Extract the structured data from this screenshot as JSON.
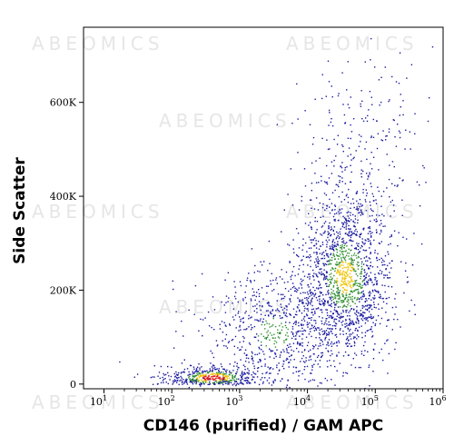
{
  "watermark": "ABEOMICS",
  "chart_data": {
    "type": "scatter",
    "title": "",
    "xlabel": "CD146 (purified) / GAM APC",
    "ylabel": "Side Scatter",
    "x_scale": "log",
    "xlim": [
      5,
      1000000
    ],
    "ylim": [
      -10000,
      760000
    ],
    "grid": false,
    "legend": "none",
    "x_ticks": [
      {
        "base": "10",
        "exp": "1",
        "value": 10
      },
      {
        "base": "10",
        "exp": "2",
        "value": 100
      },
      {
        "base": "10",
        "exp": "3",
        "value": 1000
      },
      {
        "base": "10",
        "exp": "4",
        "value": 10000
      },
      {
        "base": "10",
        "exp": "5",
        "value": 100000
      },
      {
        "base": "10",
        "exp": "6",
        "value": 1000000
      }
    ],
    "y_ticks": [
      {
        "label": "0",
        "value": 0
      },
      {
        "label": "200K",
        "value": 200000
      },
      {
        "label": "400K",
        "value": 400000
      },
      {
        "label": "600K",
        "value": 600000
      }
    ],
    "density_colors": [
      "#1a1aa0",
      "#2f8f2f",
      "#f2c200",
      "#e82020"
    ],
    "populations": [
      {
        "center_log10_x": 4.55,
        "center_y": 230000,
        "spread_log10_x": 0.35,
        "spread_y": 90000,
        "count": 1500,
        "density": "high"
      },
      {
        "center_log10_x": 3.5,
        "center_y": 110000,
        "spread_log10_x": 0.55,
        "spread_y": 70000,
        "count": 700,
        "density": "medium"
      },
      {
        "center_log10_x": 2.6,
        "center_y": 15000,
        "spread_log10_x": 0.35,
        "spread_y": 12000,
        "count": 500,
        "density": "very-high"
      },
      {
        "center_log10_x": 4.8,
        "center_y": 500000,
        "spread_log10_x": 0.45,
        "spread_y": 110000,
        "count": 250,
        "density": "low"
      }
    ]
  }
}
